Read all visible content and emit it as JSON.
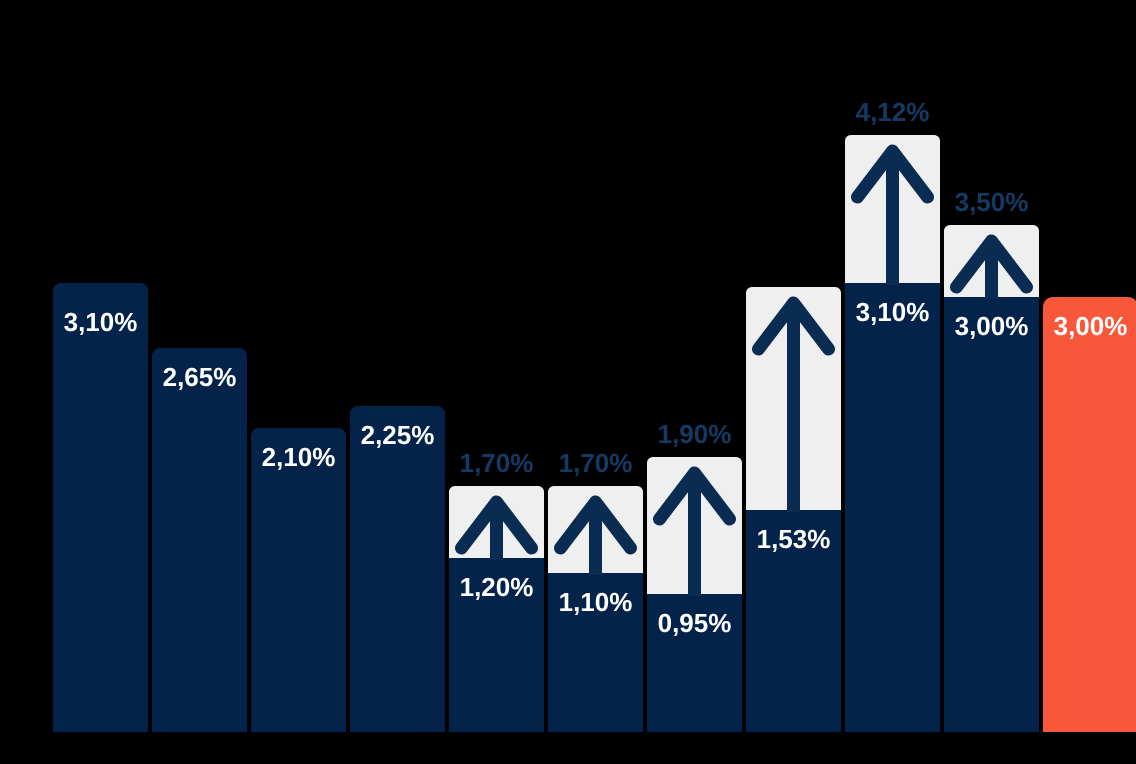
{
  "chart_data": {
    "type": "bar",
    "title": "",
    "xlabel": "",
    "ylabel": "",
    "unit": "%",
    "decimal_separator": ",",
    "ylim": [
      0,
      4.5
    ],
    "grid": false,
    "legend": false,
    "background": "#000000",
    "bars": [
      {
        "value": 3.1,
        "label": "3,10%",
        "target_value": null,
        "target_label": null,
        "highlight": false
      },
      {
        "value": 2.65,
        "label": "2,65%",
        "target_value": null,
        "target_label": null,
        "highlight": false
      },
      {
        "value": 2.1,
        "label": "2,10%",
        "target_value": null,
        "target_label": null,
        "highlight": false
      },
      {
        "value": 2.25,
        "label": "2,25%",
        "target_value": null,
        "target_label": null,
        "highlight": false
      },
      {
        "value": 1.2,
        "label": "1,20%",
        "target_value": 1.7,
        "target_label": "1,70%",
        "highlight": false
      },
      {
        "value": 1.1,
        "label": "1,10%",
        "target_value": 1.7,
        "target_label": "1,70%",
        "highlight": false
      },
      {
        "value": 0.95,
        "label": "0,95%",
        "target_value": 1.9,
        "target_label": "1,90%",
        "highlight": false
      },
      {
        "value": 1.53,
        "label": "1,53%",
        "target_value": 3.07,
        "target_label": "",
        "highlight": false
      },
      {
        "value": 3.1,
        "label": "3,10%",
        "target_value": 4.12,
        "target_label": "4,12%",
        "highlight": false
      },
      {
        "value": 3.0,
        "label": "3,00%",
        "target_value": 3.5,
        "target_label": "3,50%",
        "highlight": false
      },
      {
        "value": 3.0,
        "label": "3,00%",
        "target_value": null,
        "target_label": null,
        "highlight": true
      }
    ],
    "colors": {
      "bar": "#04234a",
      "target_bar": "#efefef",
      "highlight_bar": "#f9573a",
      "value_label": "#ffffff",
      "target_label": "#143a64",
      "arrow": "#0a2c52"
    }
  }
}
